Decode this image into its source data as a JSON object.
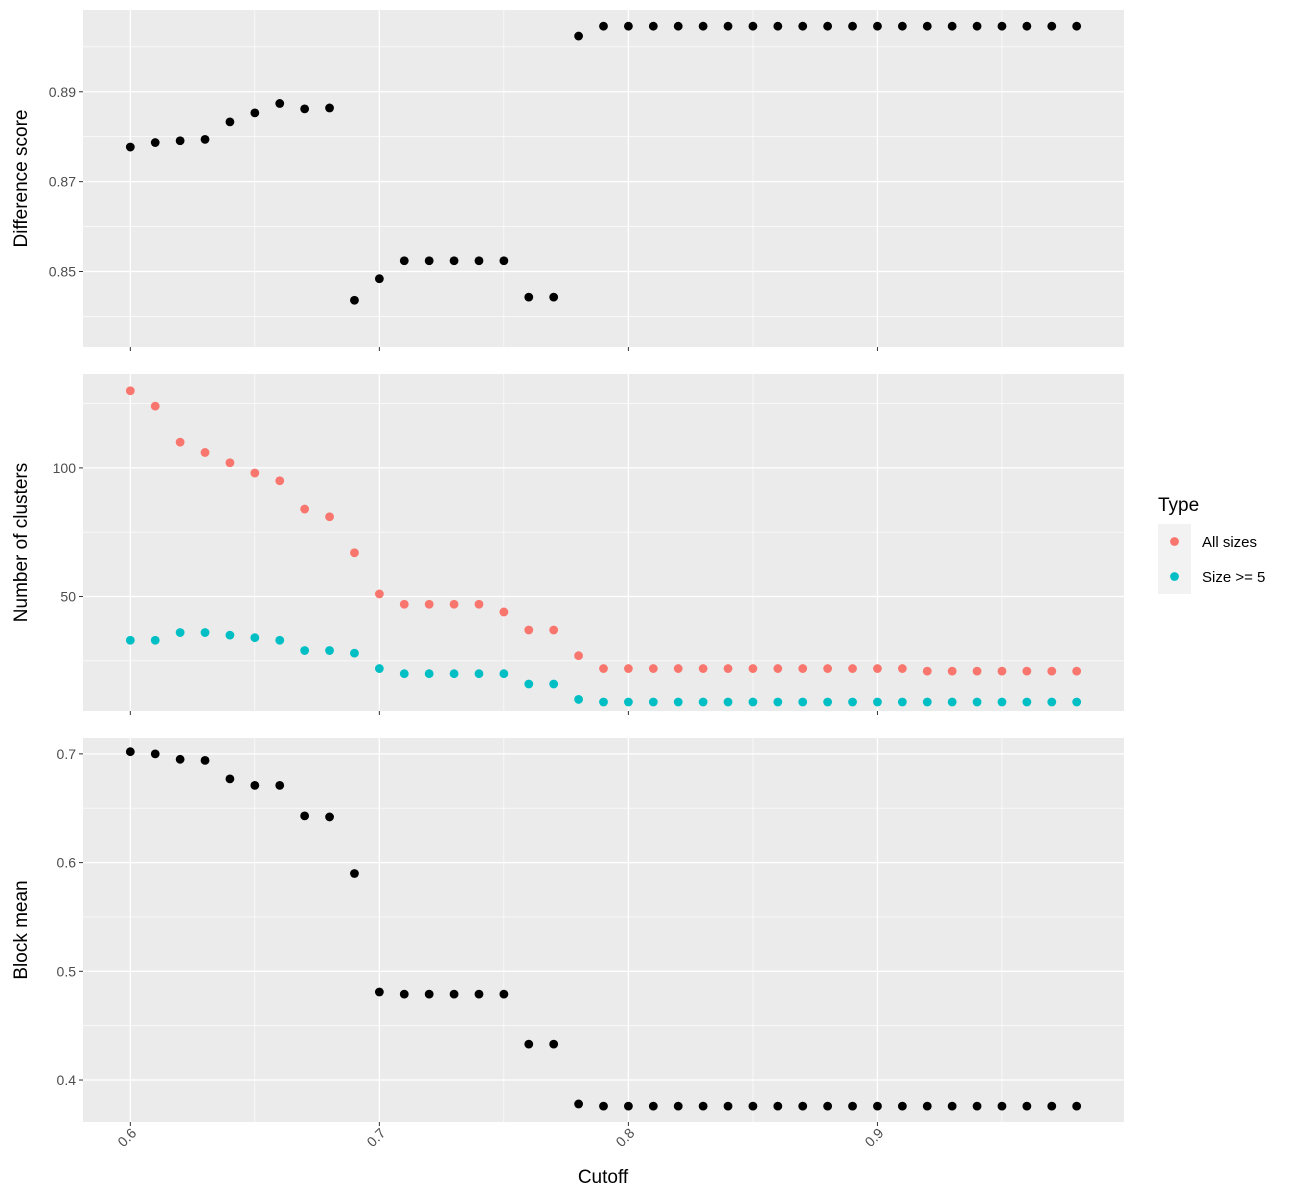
{
  "chart_data": {
    "type": "scatter",
    "x_label": "Cutoff",
    "x_range": [
      0.581,
      0.999
    ],
    "x_ticks": [
      0.6,
      0.7,
      0.8,
      0.9
    ],
    "x_tick_labels": [
      "0.6",
      "0.7",
      "0.8",
      "0.9"
    ],
    "x": [
      0.6,
      0.61,
      0.62,
      0.63,
      0.64,
      0.65,
      0.66,
      0.67,
      0.68,
      0.69,
      0.7,
      0.71,
      0.72,
      0.73,
      0.74,
      0.75,
      0.76,
      0.77,
      0.78,
      0.79,
      0.8,
      0.81,
      0.82,
      0.83,
      0.84,
      0.85,
      0.86,
      0.87,
      0.88,
      0.89,
      0.9,
      0.91,
      0.92,
      0.93,
      0.94,
      0.95,
      0.96,
      0.97,
      0.98
    ],
    "panels": [
      {
        "y_label": "Difference score",
        "y_range": [
          0.8332,
          0.9082
        ],
        "y_ticks": [
          0.85,
          0.87,
          0.89
        ],
        "y_tick_labels": [
          "0.85",
          "0.87",
          "0.89"
        ],
        "series": [
          {
            "color": "#000000",
            "values": [
              0.8777,
              0.8787,
              0.8791,
              0.8794,
              0.8833,
              0.8853,
              0.8874,
              0.8862,
              0.8864,
              0.8436,
              0.8484,
              0.8524,
              0.8524,
              0.8524,
              0.8524,
              0.8524,
              0.8443,
              0.8443,
              0.9024,
              0.9046,
              0.9046,
              0.9046,
              0.9046,
              0.9046,
              0.9046,
              0.9046,
              0.9046,
              0.9046,
              0.9046,
              0.9046,
              0.9046,
              0.9046,
              0.9046,
              0.9046,
              0.9046,
              0.9046,
              0.9046,
              0.9046,
              0.9046
            ]
          }
        ]
      },
      {
        "y_label": "Number of clusters",
        "y_range": [
          5.5,
          136.5
        ],
        "y_ticks": [
          50,
          100
        ],
        "y_tick_labels": [
          "50",
          "100"
        ],
        "series": [
          {
            "name": "All sizes",
            "color": "#F8766D",
            "values": [
              130,
              124,
              110,
              106,
              102,
              98,
              95,
              84,
              81,
              67,
              51,
              47,
              47,
              47,
              47,
              44,
              37,
              37,
              27,
              22,
              22,
              22,
              22,
              22,
              22,
              22,
              22,
              22,
              22,
              22,
              22,
              22,
              21,
              21,
              21,
              21,
              21,
              21,
              21
            ]
          },
          {
            "name": "Size >= 5",
            "color": "#00BFC4",
            "values": [
              33,
              33,
              36,
              36,
              35,
              34,
              33,
              29,
              29,
              28,
              22,
              20,
              20,
              20,
              20,
              20,
              16,
              16,
              10,
              9,
              9,
              9,
              9,
              9,
              9,
              9,
              9,
              9,
              9,
              9,
              9,
              9,
              9,
              9,
              9,
              9,
              9,
              9,
              9
            ]
          }
        ]
      },
      {
        "y_label": "Block mean",
        "y_range": [
          0.3614,
          0.7146
        ],
        "y_ticks": [
          0.4,
          0.5,
          0.6,
          0.7
        ],
        "y_tick_labels": [
          "0.4",
          "0.5",
          "0.6",
          "0.7"
        ],
        "series": [
          {
            "color": "#000000",
            "values": [
              0.702,
              0.7,
              0.695,
              0.694,
              0.677,
              0.671,
              0.671,
              0.643,
              0.642,
              0.59,
              0.481,
              0.479,
              0.479,
              0.479,
              0.479,
              0.479,
              0.433,
              0.433,
              0.378,
              0.376,
              0.376,
              0.376,
              0.376,
              0.376,
              0.376,
              0.376,
              0.376,
              0.376,
              0.376,
              0.376,
              0.376,
              0.376,
              0.376,
              0.376,
              0.376,
              0.376,
              0.376,
              0.376,
              0.376
            ]
          }
        ]
      }
    ],
    "legend": {
      "title": "Type",
      "position": "right",
      "items": [
        {
          "label": "All sizes",
          "color": "#F8766D"
        },
        {
          "label": "Size >= 5",
          "color": "#00BFC4"
        }
      ]
    },
    "grid": true,
    "panel_background": "#EBEBEB"
  }
}
